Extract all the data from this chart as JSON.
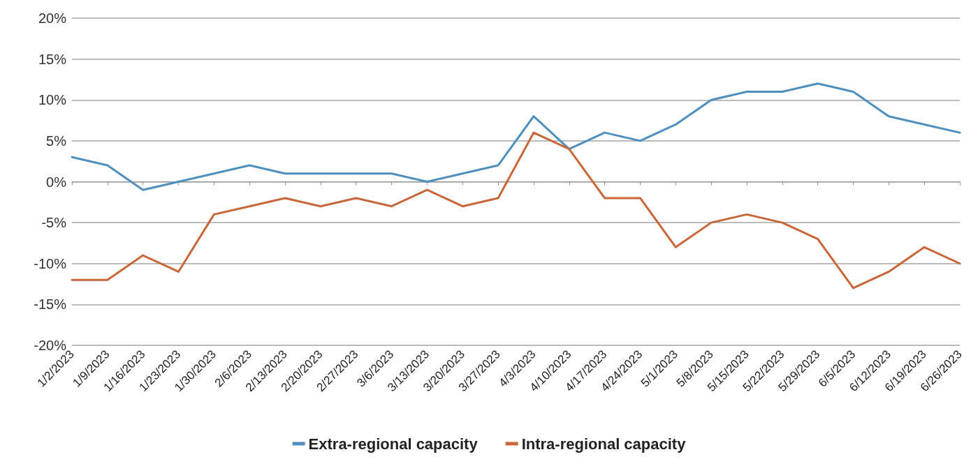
{
  "chart_data": {
    "type": "line",
    "categories": [
      "1/2/2023",
      "1/9/2023",
      "1/16/2023",
      "1/23/2023",
      "1/30/2023",
      "2/6/2023",
      "2/13/2023",
      "2/20/2023",
      "2/27/2023",
      "3/6/2023",
      "3/13/2023",
      "3/20/2023",
      "3/27/2023",
      "4/3/2023",
      "4/10/2023",
      "4/17/2023",
      "4/24/2023",
      "5/1/2023",
      "5/8/2023",
      "5/15/2023",
      "5/22/2023",
      "5/29/2023",
      "6/5/2023",
      "6/12/2023",
      "6/19/2023",
      "6/26/2023"
    ],
    "series": [
      {
        "name": "Extra-regional capacity",
        "color": "#4f8fbf",
        "values": [
          3,
          2,
          -1,
          0,
          1,
          2,
          1,
          1,
          1,
          1,
          0,
          1,
          2,
          8,
          4,
          6,
          5,
          7,
          10,
          11,
          11,
          12,
          11,
          8,
          7,
          6
        ]
      },
      {
        "name": "Intra-regional capacity",
        "color": "#c8663a",
        "values": [
          -12,
          -12,
          -9,
          -11,
          -4,
          -3,
          -2,
          -3,
          -2,
          -3,
          -1,
          -3,
          -2,
          6,
          4,
          -2,
          -2,
          -8,
          -5,
          -4,
          -5,
          -7,
          -13,
          -11,
          -8,
          -10
        ]
      }
    ],
    "ylim": [
      -20,
      20
    ],
    "yticks": [
      {
        "value": -20,
        "label": "-20%"
      },
      {
        "value": -15,
        "label": "-15%"
      },
      {
        "value": -10,
        "label": "-10%"
      },
      {
        "value": -5,
        "label": "-5%"
      },
      {
        "value": 0,
        "label": "0%"
      },
      {
        "value": 5,
        "label": "5%"
      },
      {
        "value": 10,
        "label": "10%"
      },
      {
        "value": 15,
        "label": "15%"
      },
      {
        "value": 20,
        "label": "20%"
      }
    ],
    "grid": "y",
    "legend": "bottom",
    "marker": "none",
    "line_style": "solid"
  }
}
